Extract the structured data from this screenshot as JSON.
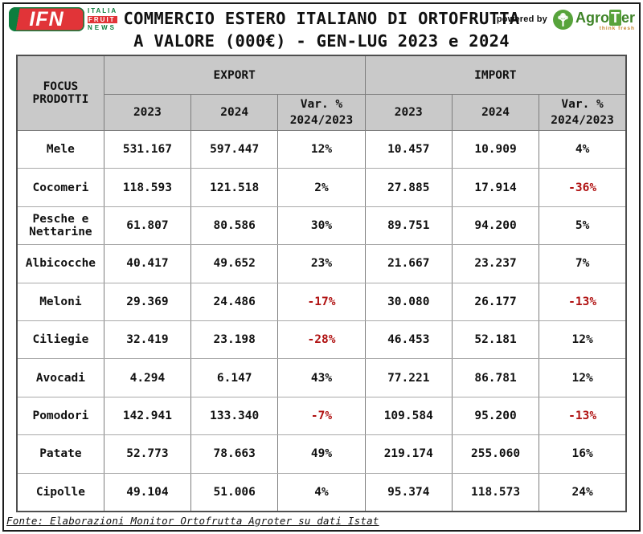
{
  "header": {
    "title_line1": "COMMERCIO ESTERO ITALIANO DI ORTOFRUTTA",
    "title_line2": "A VALORE (000€) - GEN-LUG 2023 e 2024",
    "powered_by_label": "powered by",
    "ifn_logo": {
      "acronym": "IFN",
      "italia": "ITALIA",
      "fruit": "FRUIT",
      "news": "NEWS"
    },
    "agroter_logo": {
      "name_pre": "Agro",
      "name_t": "T",
      "name_post": "er",
      "tagline": "think fresh"
    }
  },
  "table": {
    "corner_label": "FOCUS PRODOTTI",
    "groups": [
      {
        "label": "EXPORT"
      },
      {
        "label": "IMPORT"
      }
    ],
    "sub_headers": [
      "2023",
      "2024",
      "Var. % 2024/2023",
      "2023",
      "2024",
      "Var. % 2024/2023"
    ],
    "rows": [
      {
        "product": "Mele",
        "values": [
          "531.167",
          "597.447",
          "12%",
          "10.457",
          "10.909",
          "4%"
        ]
      },
      {
        "product": "Cocomeri",
        "values": [
          "118.593",
          "121.518",
          "2%",
          "27.885",
          "17.914",
          "-36%"
        ]
      },
      {
        "product": "Pesche e Nettarine",
        "values": [
          "61.807",
          "80.586",
          "30%",
          "89.751",
          "94.200",
          "5%"
        ]
      },
      {
        "product": "Albicocche",
        "values": [
          "40.417",
          "49.652",
          "23%",
          "21.667",
          "23.237",
          "7%"
        ]
      },
      {
        "product": "Meloni",
        "values": [
          "29.369",
          "24.486",
          "-17%",
          "30.080",
          "26.177",
          "-13%"
        ]
      },
      {
        "product": "Ciliegie",
        "values": [
          "32.419",
          "23.198",
          "-28%",
          "46.453",
          "52.181",
          "12%"
        ]
      },
      {
        "product": "Avocadi",
        "values": [
          "4.294",
          "6.147",
          "43%",
          "77.221",
          "86.781",
          "12%"
        ]
      },
      {
        "product": "Pomodori",
        "values": [
          "142.941",
          "133.340",
          "-7%",
          "109.584",
          "95.200",
          "-13%"
        ]
      },
      {
        "product": "Patate",
        "values": [
          "52.773",
          "78.663",
          "49%",
          "219.174",
          "255.060",
          "16%"
        ]
      },
      {
        "product": "Cipolle",
        "values": [
          "49.104",
          "51.006",
          "4%",
          "95.374",
          "118.573",
          "24%"
        ]
      }
    ]
  },
  "footer": {
    "source": "Fonte: Elaborazioni Monitor Ortofrutta Agroter su dati Istat"
  },
  "colors": {
    "header_bg": "#c9c9c9",
    "negative": "#B01111",
    "ifn_green": "#0E7E3E",
    "ifn_red": "#E13438",
    "agroter_green": "#3F8428",
    "agroter_light": "#57A33B"
  }
}
